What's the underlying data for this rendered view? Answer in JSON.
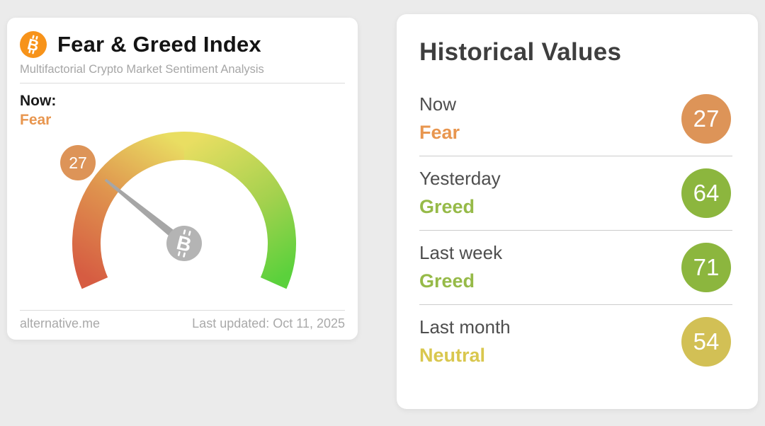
{
  "page": {
    "background_color": "#ebebeb"
  },
  "index_card": {
    "title": "Fear & Greed Index",
    "subtitle": "Multifactorial Crypto Market Sentiment Analysis",
    "now_label": "Now:",
    "now_sentiment": "Fear",
    "now_color": "#e8964f",
    "gauge": {
      "value": 27,
      "value_text": "27",
      "min": 0,
      "max": 100,
      "needle_angle_deg": 141,
      "badge_color": "#dd9458",
      "needle_color": "#a6a6a6",
      "hub_color": "#b4b4b4",
      "gradient_stops": [
        "#d65c42",
        "#df934e",
        "#e9de62",
        "#a4d14e",
        "#5bd13c"
      ]
    },
    "footer": {
      "source": "alternative.me",
      "last_updated": "Last updated: Oct 11, 2025"
    },
    "bitcoin_brand_color": "#f7931a"
  },
  "historical_card": {
    "title": "Historical Values",
    "rows": [
      {
        "label": "Now",
        "sentiment": "Fear",
        "value": "27",
        "sentiment_color": "#e8964f",
        "badge_color": "#dd9458"
      },
      {
        "label": "Yesterday",
        "sentiment": "Greed",
        "value": "64",
        "sentiment_color": "#96ba48",
        "badge_color": "#8cb63e"
      },
      {
        "label": "Last week",
        "sentiment": "Greed",
        "value": "71",
        "sentiment_color": "#96ba48",
        "badge_color": "#8cb63e"
      },
      {
        "label": "Last month",
        "sentiment": "Neutral",
        "value": "54",
        "sentiment_color": "#d9c74e",
        "badge_color": "#d2c055"
      }
    ]
  },
  "chart_data": {
    "type": "gauge",
    "title": "Fear & Greed Index",
    "value": 27,
    "value_label": "Fear",
    "range": [
      0,
      100
    ],
    "scale_colors": [
      "#d65c42",
      "#df934e",
      "#e9de62",
      "#a4d14e",
      "#5bd13c"
    ],
    "last_updated": "Oct 11, 2025",
    "source": "alternative.me",
    "historical": [
      {
        "period": "Now",
        "sentiment": "Fear",
        "value": 27
      },
      {
        "period": "Yesterday",
        "sentiment": "Greed",
        "value": 64
      },
      {
        "period": "Last week",
        "sentiment": "Greed",
        "value": 71
      },
      {
        "period": "Last month",
        "sentiment": "Neutral",
        "value": 54
      }
    ]
  }
}
